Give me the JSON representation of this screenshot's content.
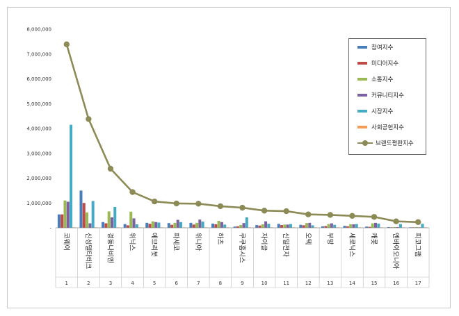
{
  "chart_data": {
    "type": "bar",
    "ylim": [
      0,
      8000000
    ],
    "yticks": [
      "8,000,000",
      "7,000,000",
      "6,000,000",
      "5,000,000",
      "4,000,000",
      "3,000,000",
      "2,000,000",
      "1,000,000",
      "-"
    ],
    "grid": false,
    "legend_position": "top-right",
    "ranks": [
      "1",
      "2",
      "3",
      "4",
      "5",
      "6",
      "7",
      "8",
      "9",
      "10",
      "11",
      "12",
      "13",
      "14",
      "15",
      "16",
      "17"
    ],
    "categories": [
      "코웨이",
      "신성델타테크",
      "경동나비엔",
      "위닉스",
      "에브리봇",
      "파세코",
      "위니아",
      "하츠",
      "쿠쿠홈시스",
      "자이글",
      "신일전자",
      "오텍",
      "부방",
      "세로닉스",
      "캐롯",
      "엔바이오니아",
      "피코그램"
    ],
    "series": [
      {
        "name": "참여지수",
        "color": "#4a7ebb",
        "values": [
          540000,
          1500000,
          230000,
          150000,
          200000,
          190000,
          200000,
          170000,
          50000,
          110000,
          160000,
          120000,
          60000,
          80000,
          50000,
          30000,
          20000
        ]
      },
      {
        "name": "미디어지수",
        "color": "#be4b48",
        "values": [
          540000,
          1000000,
          180000,
          100000,
          160000,
          120000,
          130000,
          140000,
          60000,
          90000,
          110000,
          100000,
          70000,
          60000,
          40000,
          20000,
          20000
        ]
      },
      {
        "name": "소통지수",
        "color": "#98b954",
        "values": [
          1100000,
          620000,
          660000,
          650000,
          260000,
          200000,
          200000,
          280000,
          110000,
          140000,
          130000,
          190000,
          150000,
          140000,
          180000,
          30000,
          30000
        ]
      },
      {
        "name": "커뮤니티지수",
        "color": "#7d60a0",
        "values": [
          1050000,
          180000,
          420000,
          380000,
          230000,
          320000,
          330000,
          230000,
          190000,
          260000,
          130000,
          200000,
          180000,
          140000,
          200000,
          30000,
          20000
        ]
      },
      {
        "name": "시장지수",
        "color": "#46aac5",
        "values": [
          4150000,
          1080000,
          840000,
          140000,
          210000,
          230000,
          250000,
          130000,
          420000,
          160000,
          150000,
          100000,
          120000,
          150000,
          170000,
          150000,
          160000
        ]
      },
      {
        "name": "사회공헌지수",
        "color": "#f59d56",
        "values": [
          5000,
          3000,
          3000,
          2000,
          2000,
          2000,
          2000,
          2000,
          2000,
          2000,
          2000,
          2000,
          2000,
          2000,
          2000,
          2000,
          2000
        ]
      }
    ],
    "line": {
      "name": "브랜드평판지수",
      "color": "#8c8a55",
      "values": [
        7390000,
        4380000,
        2380000,
        1440000,
        1060000,
        980000,
        970000,
        870000,
        810000,
        690000,
        670000,
        540000,
        520000,
        480000,
        440000,
        260000,
        230000
      ]
    }
  }
}
